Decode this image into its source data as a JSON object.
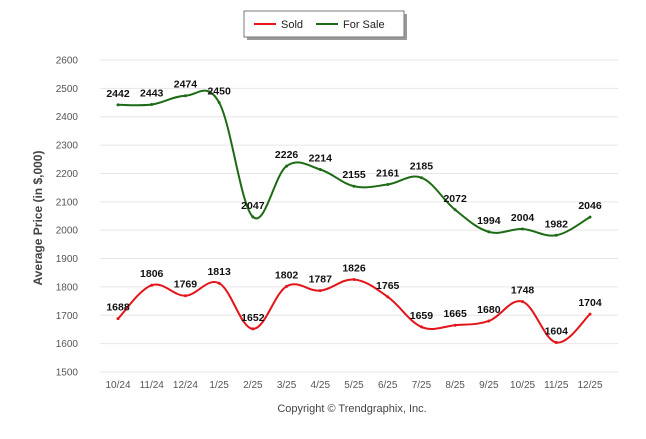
{
  "chart_data": {
    "type": "line",
    "title": "",
    "xlabel": "",
    "ylabel": "Average Price (in $,000)",
    "ylim": [
      1500,
      2600
    ],
    "yticks": [
      1500,
      1600,
      1700,
      1800,
      1900,
      2000,
      2100,
      2200,
      2300,
      2400,
      2500,
      2600
    ],
    "categories": [
      "10/24",
      "11/24",
      "12/24",
      "1/25",
      "2/25",
      "3/25",
      "4/25",
      "5/25",
      "6/25",
      "7/25",
      "8/25",
      "9/25",
      "10/25",
      "11/25",
      "12/25"
    ],
    "grid": true,
    "legend_position": "top-center",
    "series": [
      {
        "name": "Sold",
        "color": "#e3151a",
        "values": [
          1688,
          1806,
          1769,
          1813,
          1652,
          1802,
          1787,
          1826,
          1765,
          1659,
          1665,
          1680,
          1748,
          1604,
          1704
        ]
      },
      {
        "name": "For Sale",
        "color": "#1d6b15",
        "values": [
          2442,
          2443,
          2474,
          2450,
          2047,
          2226,
          2214,
          2155,
          2161,
          2185,
          2072,
          1994,
          2004,
          1982,
          2046
        ]
      }
    ],
    "footer": "Copyright © Trendgraphix, Inc."
  }
}
